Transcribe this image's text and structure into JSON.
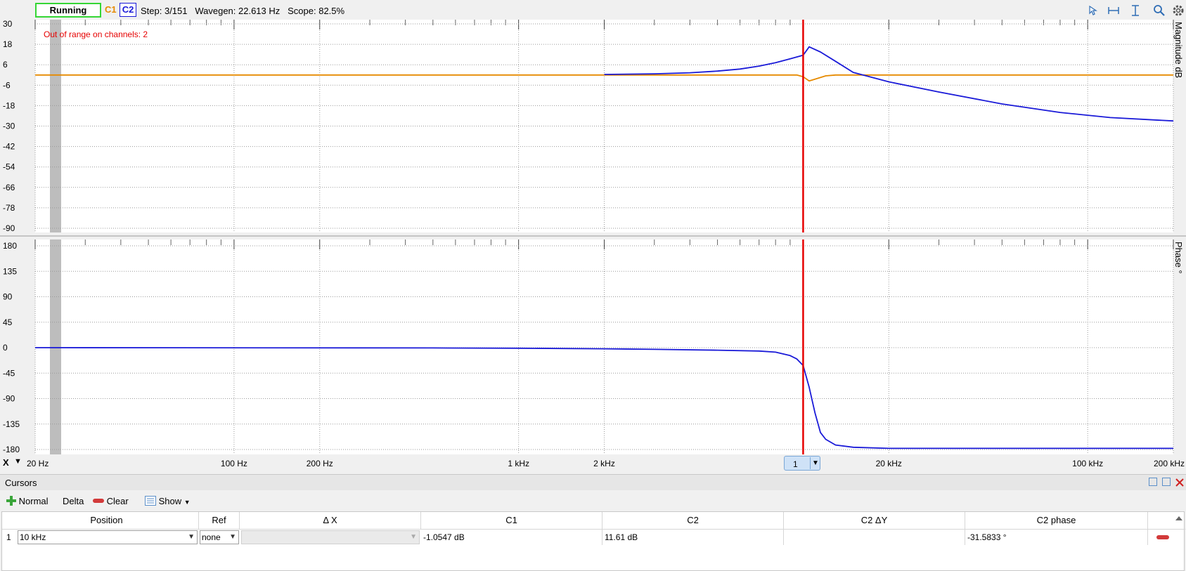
{
  "topbar": {
    "run_label": "Running",
    "ch1_label": "C1",
    "ch2_label": "C2",
    "step": "Step: 3/151",
    "wavegen": "Wavegen: 22.613 Hz",
    "scope": "Scope: 82.5%",
    "icons": [
      "cursor-icon",
      "horizontal-fit-icon",
      "vertical-fit-icon",
      "zoom-icon",
      "settings-icon"
    ]
  },
  "colors": {
    "c1": "#e68a00",
    "c2": "#1a1ad8",
    "cursor": "#e60000",
    "warning": "#e60000"
  },
  "warning": "Out of range on channels: 2",
  "magnitude_axis": {
    "label": "Magnitude dB",
    "ticks": [
      "30",
      "18",
      "6",
      "-6",
      "-18",
      "-30",
      "-42",
      "-54",
      "-66",
      "-78",
      "-90"
    ]
  },
  "phase_axis": {
    "label": "Phase °",
    "ticks": [
      "180",
      "135",
      "90",
      "45",
      "0",
      "-45",
      "-90",
      "-135",
      "-180"
    ]
  },
  "x_axis": {
    "button": "X",
    "ticks": [
      "20 Hz",
      "100 Hz",
      "200 Hz",
      "1 kHz",
      "2 kHz",
      "20 kHz",
      "100 kHz",
      "200 kHz"
    ],
    "cursor_tag": "1"
  },
  "chart_data": [
    {
      "type": "line",
      "title": "",
      "xlabel": "",
      "ylabel": "Magnitude dB",
      "xscale": "log",
      "xlim": [
        20,
        200000
      ],
      "ylim": [
        -90,
        30
      ],
      "series": [
        {
          "name": "C1",
          "color": "#e68a00",
          "x": [
            20,
            1000,
            9500,
            10000,
            10500,
            11000,
            12000,
            13000,
            200000
          ],
          "y": [
            0,
            0,
            0,
            -1.05,
            -3.5,
            -2.5,
            -0.5,
            0,
            0
          ]
        },
        {
          "name": "C2",
          "color": "#1a1ad8",
          "x": [
            2000,
            3000,
            4000,
            5000,
            6000,
            7000,
            8000,
            9000,
            10000,
            10500,
            11500,
            13000,
            15000,
            20000,
            30000,
            50000,
            80000,
            120000,
            200000
          ],
          "y": [
            0.3,
            0.7,
            1.3,
            2.3,
            3.5,
            5.2,
            7.2,
            9.5,
            11.61,
            16.5,
            13.5,
            8,
            1.5,
            -4,
            -10,
            -17,
            -22,
            -25,
            -27
          ]
        }
      ],
      "cursor_x": 10000
    },
    {
      "type": "line",
      "title": "",
      "xlabel": "",
      "ylabel": "Phase °",
      "xscale": "log",
      "xlim": [
        20,
        200000
      ],
      "ylim": [
        -180,
        180
      ],
      "series": [
        {
          "name": "C2",
          "color": "#1a1ad8",
          "x": [
            20,
            500,
            1000,
            2000,
            3000,
            5000,
            7000,
            8000,
            9000,
            9500,
            10000,
            10500,
            11000,
            11500,
            12000,
            13000,
            15000,
            20000,
            50000,
            200000
          ],
          "y": [
            0,
            -0.5,
            -1,
            -2,
            -3,
            -4.5,
            -6,
            -8,
            -14,
            -20,
            -31.58,
            -70,
            -115,
            -150,
            -162,
            -172,
            -176,
            -178,
            -178,
            -178
          ]
        }
      ],
      "cursor_x": 10000
    }
  ],
  "cursors": {
    "title": "Cursors",
    "toolbar": {
      "normal": "Normal",
      "delta": "Delta",
      "clear": "Clear",
      "show": "Show"
    },
    "columns": [
      "Position",
      "Ref",
      "Δ X",
      "C1",
      "C2",
      "C2 ΔY",
      "C2 phase"
    ],
    "rows": [
      {
        "index": "1",
        "position": "10 kHz",
        "ref": "none",
        "dx": "",
        "c1": "-1.0547 dB",
        "c2": "11.61 dB",
        "c2_dy": "",
        "c2_phase": "-31.5833 °"
      }
    ]
  }
}
